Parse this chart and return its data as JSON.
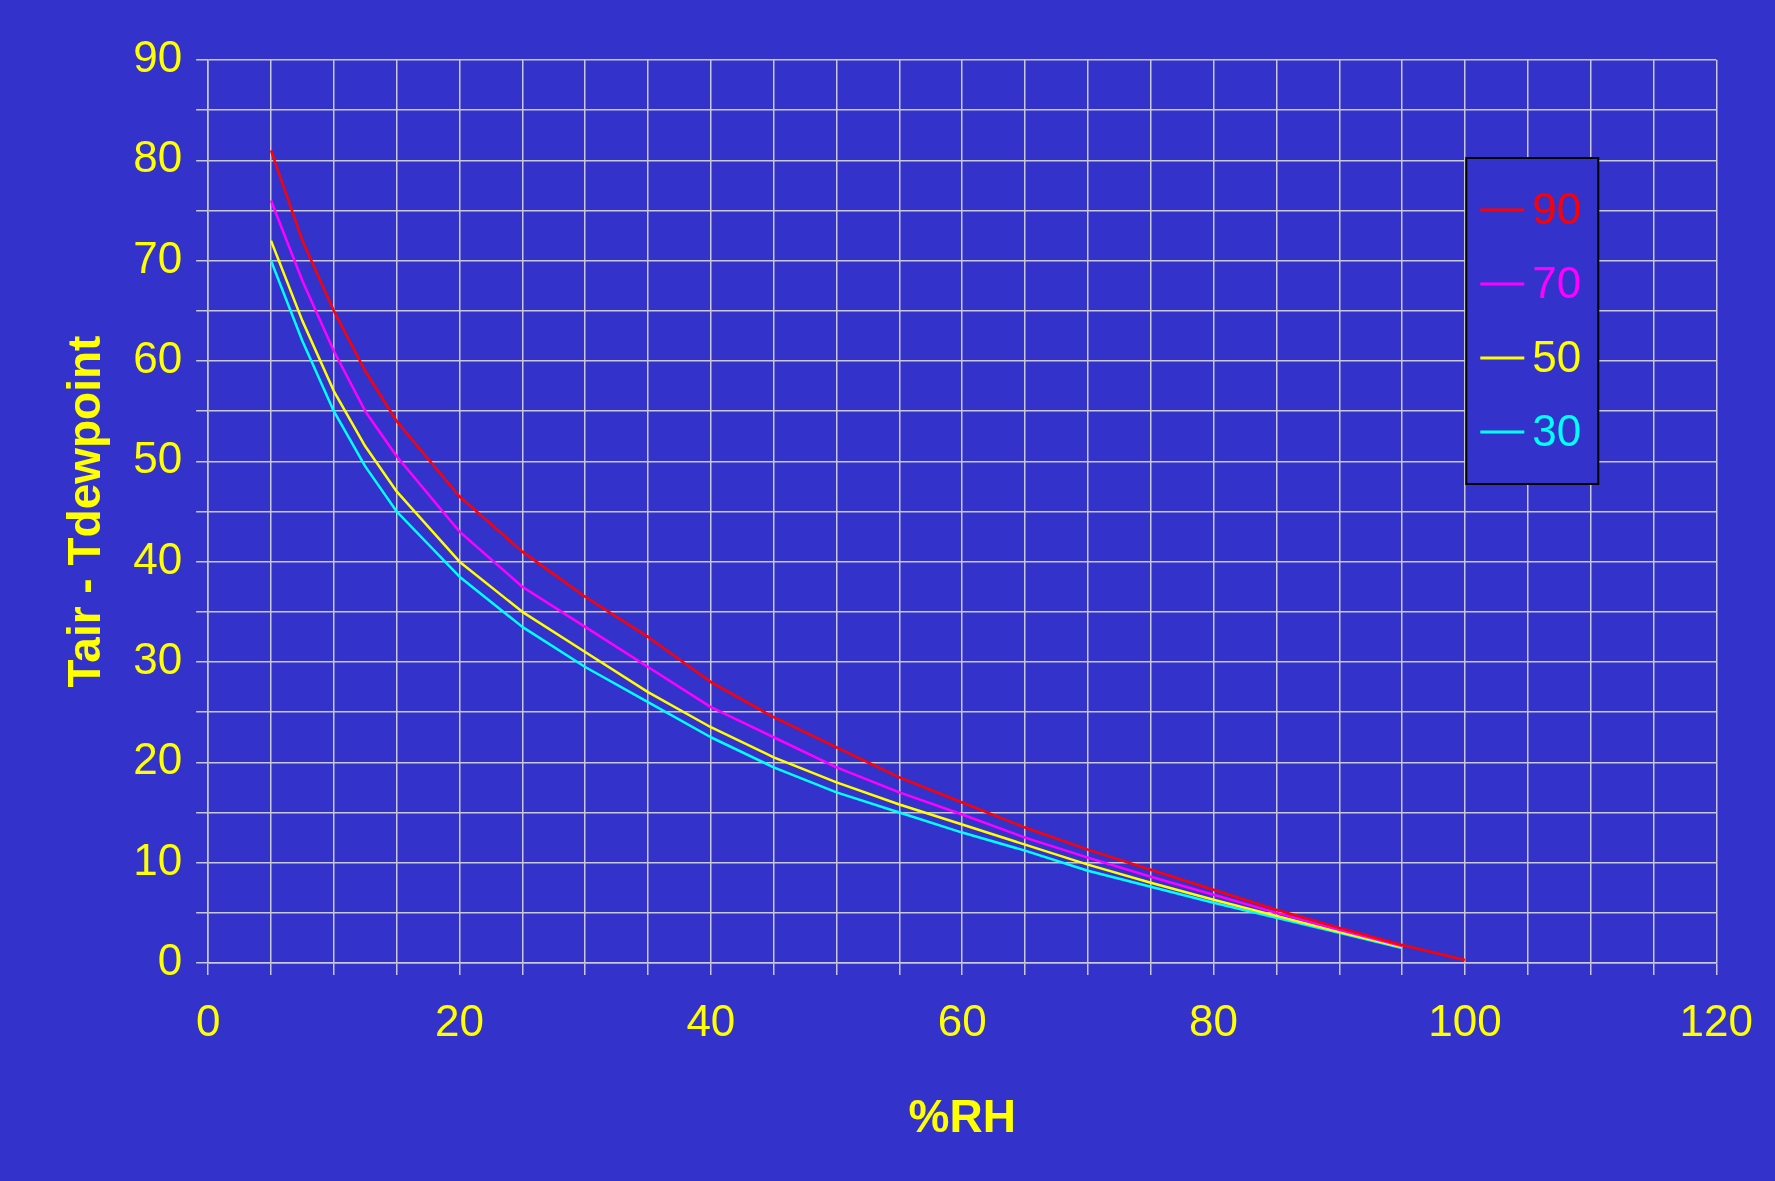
{
  "chart_data": {
    "type": "line",
    "xlabel": "%RH",
    "ylabel": "Tair - Tdewpoint",
    "x": [
      5,
      7.5,
      10,
      12.5,
      15,
      20,
      25,
      30,
      35,
      40,
      45,
      50,
      55,
      60,
      65,
      70,
      75,
      80,
      85,
      90,
      95,
      100
    ],
    "series": [
      {
        "name": "90",
        "color": "#ff0000",
        "values": [
          81,
          72,
          65,
          59,
          54,
          46.5,
          41,
          36.5,
          32.5,
          28,
          24.5,
          21.5,
          18.5,
          16,
          13.5,
          11.3,
          9.3,
          7.3,
          5.3,
          3.5,
          1.8,
          0.3
        ]
      },
      {
        "name": "70",
        "color": "#ff00ff",
        "values": [
          76,
          68,
          61,
          55,
          50.5,
          43,
          37.5,
          33.5,
          29.5,
          25.5,
          22.5,
          19.5,
          17,
          14.8,
          12.5,
          10.5,
          8.6,
          6.8,
          5,
          3.3,
          1.7,
          null
        ]
      },
      {
        "name": "50",
        "color": "#ffff00",
        "values": [
          72,
          64,
          57,
          51.5,
          47,
          40,
          35,
          31,
          27,
          23.5,
          20.5,
          18,
          15.8,
          13.8,
          11.8,
          9.8,
          8,
          6.3,
          4.7,
          3.1,
          1.6,
          null
        ]
      },
      {
        "name": "30",
        "color": "#00ffff",
        "values": [
          70,
          62,
          55,
          49.5,
          45,
          38.5,
          33.5,
          29.5,
          26,
          22.5,
          19.5,
          17,
          15,
          13,
          11.2,
          9.2,
          7.6,
          6,
          4.5,
          3,
          1.5,
          null
        ]
      }
    ],
    "xlim": [
      0,
      120
    ],
    "ylim": [
      0,
      90
    ],
    "xticks": [
      0,
      {
        "value": 5,
        "label": null
      },
      {
        "value": 10,
        "label": null
      },
      {
        "value": 15,
        "label": null
      },
      20,
      {
        "value": 25,
        "label": null
      },
      {
        "value": 30,
        "label": null
      },
      {
        "value": 35,
        "label": null
      },
      40,
      {
        "value": 45,
        "label": null
      },
      {
        "value": 50,
        "label": null
      },
      {
        "value": 55,
        "label": null
      },
      60,
      {
        "value": 65,
        "label": null
      },
      {
        "value": 70,
        "label": null
      },
      {
        "value": 75,
        "label": null
      },
      80,
      {
        "value": 85,
        "label": null
      },
      {
        "value": 90,
        "label": null
      },
      {
        "value": 95,
        "label": null
      },
      100,
      {
        "value": 105,
        "label": null
      },
      {
        "value": 110,
        "label": null
      },
      {
        "value": 115,
        "label": null
      },
      120
    ],
    "yticks": [
      0,
      {
        "value": 5,
        "label": null
      },
      10,
      {
        "value": 15,
        "label": null
      },
      20,
      {
        "value": 25,
        "label": null
      },
      30,
      {
        "value": 35,
        "label": null
      },
      40,
      {
        "value": 45,
        "label": null
      },
      50,
      {
        "value": 55,
        "label": null
      },
      60,
      {
        "value": 65,
        "label": null
      },
      70,
      {
        "value": 75,
        "label": null
      },
      80,
      {
        "value": 85,
        "label": null
      },
      90
    ],
    "grid": true,
    "legend": "top right",
    "marker": "none",
    "line_style": "solid"
  }
}
